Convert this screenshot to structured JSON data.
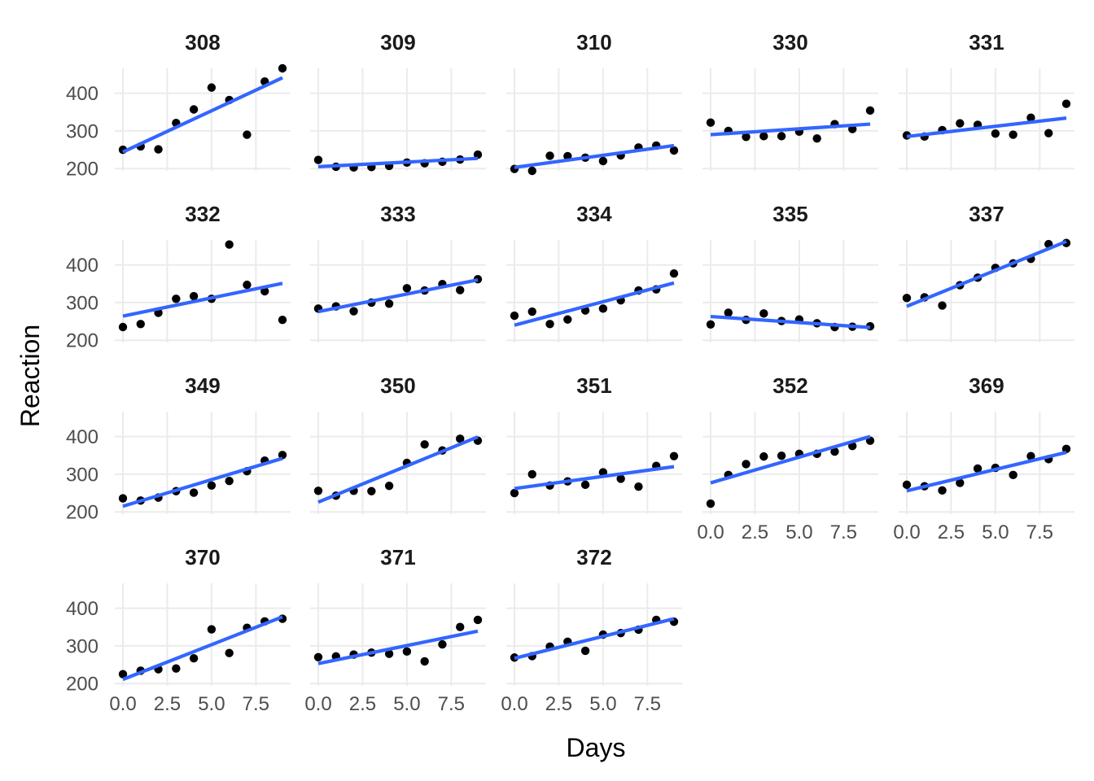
{
  "chart_data": {
    "type": "scatter",
    "layout": "facet_wrap",
    "ncol": 5,
    "xlabel": "Days",
    "ylabel": "Reaction",
    "xlim": [
      0,
      9
    ],
    "ylim": [
      194,
      466
    ],
    "x_ticks": [
      0,
      2.5,
      5,
      7.5
    ],
    "x_tick_labels": [
      "0.0",
      "2.5",
      "5.0",
      "7.5"
    ],
    "y_ticks": [
      200,
      300,
      400
    ],
    "y_tick_labels": [
      "200",
      "300",
      "400"
    ],
    "grid": true,
    "legend": "none",
    "point_color": "#000000",
    "fit_color": "#3366FF",
    "fit_type": "linear",
    "panels": [
      {
        "label": "308",
        "days": [
          0,
          1,
          2,
          3,
          4,
          5,
          6,
          7,
          8,
          9
        ],
        "reaction": [
          250,
          259,
          251,
          321,
          357,
          415,
          382,
          290,
          431,
          466
        ],
        "fit": [
          244,
          441
        ]
      },
      {
        "label": "309",
        "days": [
          0,
          1,
          2,
          3,
          4,
          5,
          6,
          7,
          8,
          9
        ],
        "reaction": [
          223,
          205,
          203,
          204,
          207,
          216,
          214,
          218,
          224,
          237
        ],
        "fit": [
          205,
          227
        ]
      },
      {
        "label": "310",
        "days": [
          0,
          1,
          2,
          3,
          4,
          5,
          6,
          7,
          8,
          9
        ],
        "reaction": [
          199,
          194,
          234,
          233,
          229,
          220,
          235,
          256,
          261,
          248
        ],
        "fit": [
          203,
          261
        ]
      },
      {
        "label": "330",
        "days": [
          0,
          1,
          2,
          3,
          4,
          5,
          6,
          7,
          8,
          9
        ],
        "reaction": [
          322,
          300,
          284,
          286,
          286,
          298,
          280,
          318,
          305,
          354
        ],
        "fit": [
          290,
          318
        ]
      },
      {
        "label": "331",
        "days": [
          0,
          1,
          2,
          3,
          4,
          5,
          6,
          7,
          8,
          9
        ],
        "reaction": [
          288,
          285,
          302,
          320,
          316,
          293,
          290,
          335,
          294,
          372
        ],
        "fit": [
          285,
          334
        ]
      },
      {
        "label": "332",
        "days": [
          0,
          1,
          2,
          3,
          4,
          5,
          6,
          7,
          8,
          9
        ],
        "reaction": [
          235,
          243,
          273,
          310,
          317,
          310,
          454,
          347,
          330,
          254
        ],
        "fit": [
          264,
          351
        ]
      },
      {
        "label": "333",
        "days": [
          0,
          1,
          2,
          3,
          4,
          5,
          6,
          7,
          8,
          9
        ],
        "reaction": [
          284,
          290,
          277,
          300,
          297,
          338,
          332,
          349,
          333,
          362
        ],
        "fit": [
          276,
          360
        ]
      },
      {
        "label": "334",
        "days": [
          0,
          1,
          2,
          3,
          4,
          5,
          6,
          7,
          8,
          9
        ],
        "reaction": [
          265,
          276,
          243,
          255,
          279,
          284,
          306,
          332,
          335,
          377
        ],
        "fit": [
          240,
          352
        ]
      },
      {
        "label": "335",
        "days": [
          0,
          1,
          2,
          3,
          4,
          5,
          6,
          7,
          8,
          9
        ],
        "reaction": [
          242,
          273,
          254,
          271,
          251,
          255,
          245,
          235,
          236,
          237
        ],
        "fit": [
          263,
          234
        ]
      },
      {
        "label": "337",
        "days": [
          0,
          1,
          2,
          3,
          4,
          5,
          6,
          7,
          8,
          9
        ],
        "reaction": [
          312,
          314,
          292,
          346,
          366,
          392,
          404,
          416,
          455,
          458
        ],
        "fit": [
          290,
          462
        ]
      },
      {
        "label": "349",
        "days": [
          0,
          1,
          2,
          3,
          4,
          5,
          6,
          7,
          8,
          9
        ],
        "reaction": [
          236,
          230,
          238,
          255,
          251,
          270,
          282,
          308,
          336,
          351
        ],
        "fit": [
          215,
          342
        ]
      },
      {
        "label": "350",
        "days": [
          0,
          1,
          2,
          3,
          4,
          5,
          6,
          7,
          8,
          9
        ],
        "reaction": [
          256,
          243,
          256,
          255,
          269,
          330,
          379,
          363,
          394,
          389
        ],
        "fit": [
          226,
          399
        ]
      },
      {
        "label": "351",
        "days": [
          0,
          1,
          2,
          3,
          4,
          5,
          6,
          7,
          8,
          9
        ],
        "reaction": [
          250,
          300,
          270,
          281,
          272,
          305,
          288,
          267,
          322,
          348
        ],
        "fit": [
          262,
          320
        ]
      },
      {
        "label": "352",
        "days": [
          0,
          1,
          2,
          3,
          4,
          5,
          6,
          7,
          8,
          9
        ],
        "reaction": [
          222,
          298,
          327,
          347,
          349,
          354,
          354,
          360,
          375,
          389
        ],
        "fit": [
          277,
          400
        ]
      },
      {
        "label": "369",
        "days": [
          0,
          1,
          2,
          3,
          4,
          5,
          6,
          7,
          8,
          9
        ],
        "reaction": [
          272,
          268,
          257,
          277,
          315,
          317,
          298,
          348,
          340,
          367
        ],
        "fit": [
          256,
          358
        ]
      },
      {
        "label": "370",
        "days": [
          0,
          1,
          2,
          3,
          4,
          5,
          6,
          7,
          8,
          9
        ],
        "reaction": [
          225,
          234,
          238,
          240,
          267,
          344,
          281,
          348,
          365,
          372
        ],
        "fit": [
          211,
          377
        ]
      },
      {
        "label": "371",
        "days": [
          0,
          1,
          2,
          3,
          4,
          5,
          6,
          7,
          8,
          9
        ],
        "reaction": [
          270,
          272,
          277,
          282,
          279,
          285,
          259,
          304,
          350,
          369
        ],
        "fit": [
          253,
          339
        ]
      },
      {
        "label": "372",
        "days": [
          0,
          1,
          2,
          3,
          4,
          5,
          6,
          7,
          8,
          9
        ],
        "reaction": [
          269,
          273,
          298,
          311,
          287,
          330,
          334,
          343,
          369,
          364
        ],
        "fit": [
          267,
          372
        ]
      }
    ]
  }
}
